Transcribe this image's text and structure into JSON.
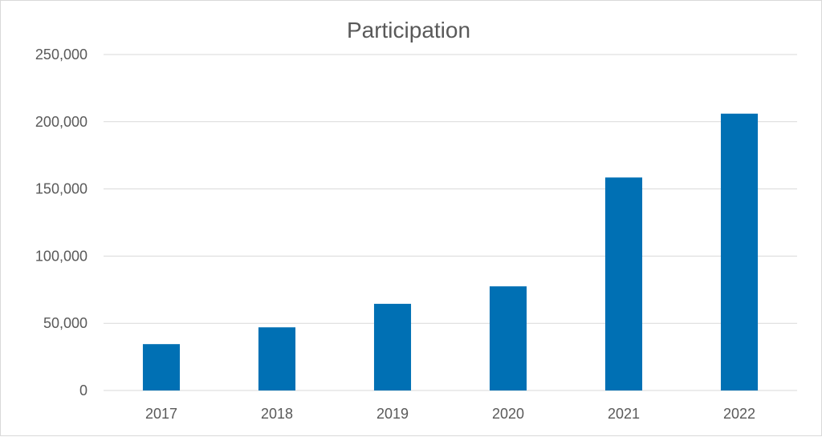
{
  "chart_data": {
    "type": "bar",
    "title": "Participation",
    "xlabel": "",
    "ylabel": "",
    "categories": [
      "2017",
      "2018",
      "2019",
      "2020",
      "2021",
      "2022"
    ],
    "values": [
      34500,
      47000,
      64500,
      77500,
      158500,
      206000
    ],
    "ylim": [
      0,
      250000
    ],
    "yticks": [
      0,
      50000,
      100000,
      150000,
      200000,
      250000
    ],
    "ytick_labels": [
      "0",
      "50,000",
      "100,000",
      "150,000",
      "200,000",
      "250,000"
    ],
    "grid": true,
    "legend": "none",
    "bar_color": "#0070b4"
  }
}
